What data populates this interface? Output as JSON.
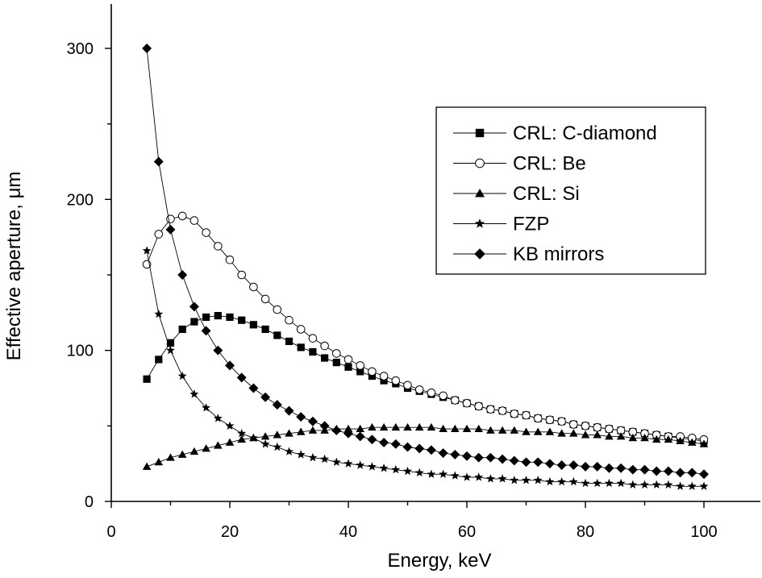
{
  "chart_data": {
    "type": "line",
    "xlabel": "Energy, keV",
    "ylabel": "Effective aperture, μm",
    "xlim": [
      0,
      110
    ],
    "ylim": [
      0,
      330
    ],
    "xticks": [
      0,
      20,
      40,
      60,
      80,
      100
    ],
    "yticks": [
      0,
      100,
      200,
      300
    ],
    "xtick_labels": [
      "0",
      "20",
      "40",
      "60",
      "80",
      "100"
    ],
    "ytick_labels": [
      "0",
      "100",
      "200",
      "300"
    ],
    "grid": false,
    "legend_position": "top-right",
    "series": [
      {
        "name": "CRL: C-diamond",
        "marker": "square",
        "x": [
          6,
          8,
          10,
          12,
          14,
          16,
          18,
          20,
          22,
          24,
          26,
          28,
          30,
          32,
          34,
          36,
          38,
          40,
          42,
          44,
          46,
          48,
          50,
          52,
          54,
          56,
          58,
          60,
          62,
          64,
          66,
          68,
          70,
          72,
          74,
          76,
          78,
          80,
          82,
          84,
          86,
          88,
          90,
          92,
          94,
          96,
          98,
          100
        ],
        "y": [
          81,
          94,
          105,
          114,
          119,
          122,
          123,
          122,
          120,
          117,
          114,
          110,
          106,
          102,
          99,
          95,
          92,
          89,
          86,
          83,
          80,
          78,
          75,
          73,
          71,
          69,
          67,
          65,
          63,
          61,
          60,
          58,
          57,
          55,
          54,
          53,
          51,
          50,
          49,
          48,
          47,
          46,
          45,
          44,
          43,
          42,
          41,
          40
        ]
      },
      {
        "name": "CRL: Be",
        "marker": "open-circle",
        "x": [
          6,
          8,
          10,
          12,
          14,
          16,
          18,
          20,
          22,
          24,
          26,
          28,
          30,
          32,
          34,
          36,
          38,
          40,
          42,
          44,
          46,
          48,
          50,
          52,
          54,
          56,
          58,
          60,
          62,
          64,
          66,
          68,
          70,
          72,
          74,
          76,
          78,
          80,
          82,
          84,
          86,
          88,
          90,
          92,
          94,
          96,
          98,
          100
        ],
        "y": [
          157,
          177,
          187,
          189,
          186,
          178,
          169,
          160,
          150,
          142,
          134,
          127,
          120,
          114,
          108,
          103,
          98,
          94,
          90,
          86,
          83,
          80,
          77,
          74,
          72,
          70,
          67,
          65,
          63,
          61,
          60,
          58,
          57,
          55,
          54,
          53,
          51,
          50,
          49,
          48,
          47,
          46,
          45,
          44,
          43,
          43,
          42,
          41
        ]
      },
      {
        "name": "CRL: Si",
        "marker": "triangle",
        "x": [
          6,
          8,
          10,
          12,
          14,
          16,
          18,
          20,
          22,
          24,
          26,
          28,
          30,
          32,
          34,
          36,
          38,
          40,
          42,
          44,
          46,
          48,
          50,
          52,
          54,
          56,
          58,
          60,
          62,
          64,
          66,
          68,
          70,
          72,
          74,
          76,
          78,
          80,
          82,
          84,
          86,
          88,
          90,
          92,
          94,
          96,
          98,
          100
        ],
        "y": [
          23,
          26,
          29,
          31,
          33,
          35,
          37,
          39,
          41,
          42,
          43,
          44,
          45,
          46,
          47,
          47,
          48,
          48,
          48,
          49,
          49,
          49,
          49,
          49,
          49,
          48,
          48,
          48,
          48,
          47,
          47,
          47,
          46,
          46,
          46,
          45,
          45,
          44,
          44,
          43,
          43,
          42,
          42,
          41,
          41,
          40,
          39,
          38
        ]
      },
      {
        "name": "FZP",
        "marker": "star",
        "x": [
          6,
          8,
          10,
          12,
          14,
          16,
          18,
          20,
          22,
          24,
          26,
          28,
          30,
          32,
          34,
          36,
          38,
          40,
          42,
          44,
          46,
          48,
          50,
          52,
          54,
          56,
          58,
          60,
          62,
          64,
          66,
          68,
          70,
          72,
          74,
          76,
          78,
          80,
          82,
          84,
          86,
          88,
          90,
          92,
          94,
          96,
          98,
          100
        ],
        "y": [
          166,
          124,
          100,
          83,
          71,
          62,
          55,
          50,
          45,
          42,
          38,
          36,
          33,
          31,
          29,
          28,
          26,
          25,
          24,
          23,
          22,
          21,
          20,
          19,
          18,
          18,
          17,
          16,
          16,
          15,
          15,
          14,
          14,
          14,
          13,
          13,
          13,
          12,
          12,
          12,
          12,
          11,
          11,
          11,
          11,
          10,
          10,
          10
        ]
      },
      {
        "name": "KB mirrors",
        "marker": "diamond",
        "x": [
          6,
          8,
          10,
          12,
          14,
          16,
          18,
          20,
          22,
          24,
          26,
          28,
          30,
          32,
          34,
          36,
          38,
          40,
          42,
          44,
          46,
          48,
          50,
          52,
          54,
          56,
          58,
          60,
          62,
          64,
          66,
          68,
          70,
          72,
          74,
          76,
          78,
          80,
          82,
          84,
          86,
          88,
          90,
          92,
          94,
          96,
          98,
          100
        ],
        "y": [
          300,
          225,
          180,
          150,
          129,
          113,
          100,
          90,
          82,
          75,
          69,
          64,
          60,
          56,
          53,
          50,
          47,
          45,
          43,
          41,
          39,
          38,
          36,
          35,
          34,
          32,
          31,
          30,
          29,
          29,
          28,
          27,
          26,
          26,
          25,
          24,
          24,
          23,
          23,
          22,
          22,
          21,
          21,
          20,
          20,
          19,
          19,
          18
        ]
      }
    ]
  },
  "legend": {
    "items": [
      "CRL: C-diamond",
      "CRL: Be",
      "CRL: Si",
      "FZP",
      "KB mirrors"
    ]
  },
  "colors": {
    "ink": "#000000",
    "background": "#ffffff"
  }
}
